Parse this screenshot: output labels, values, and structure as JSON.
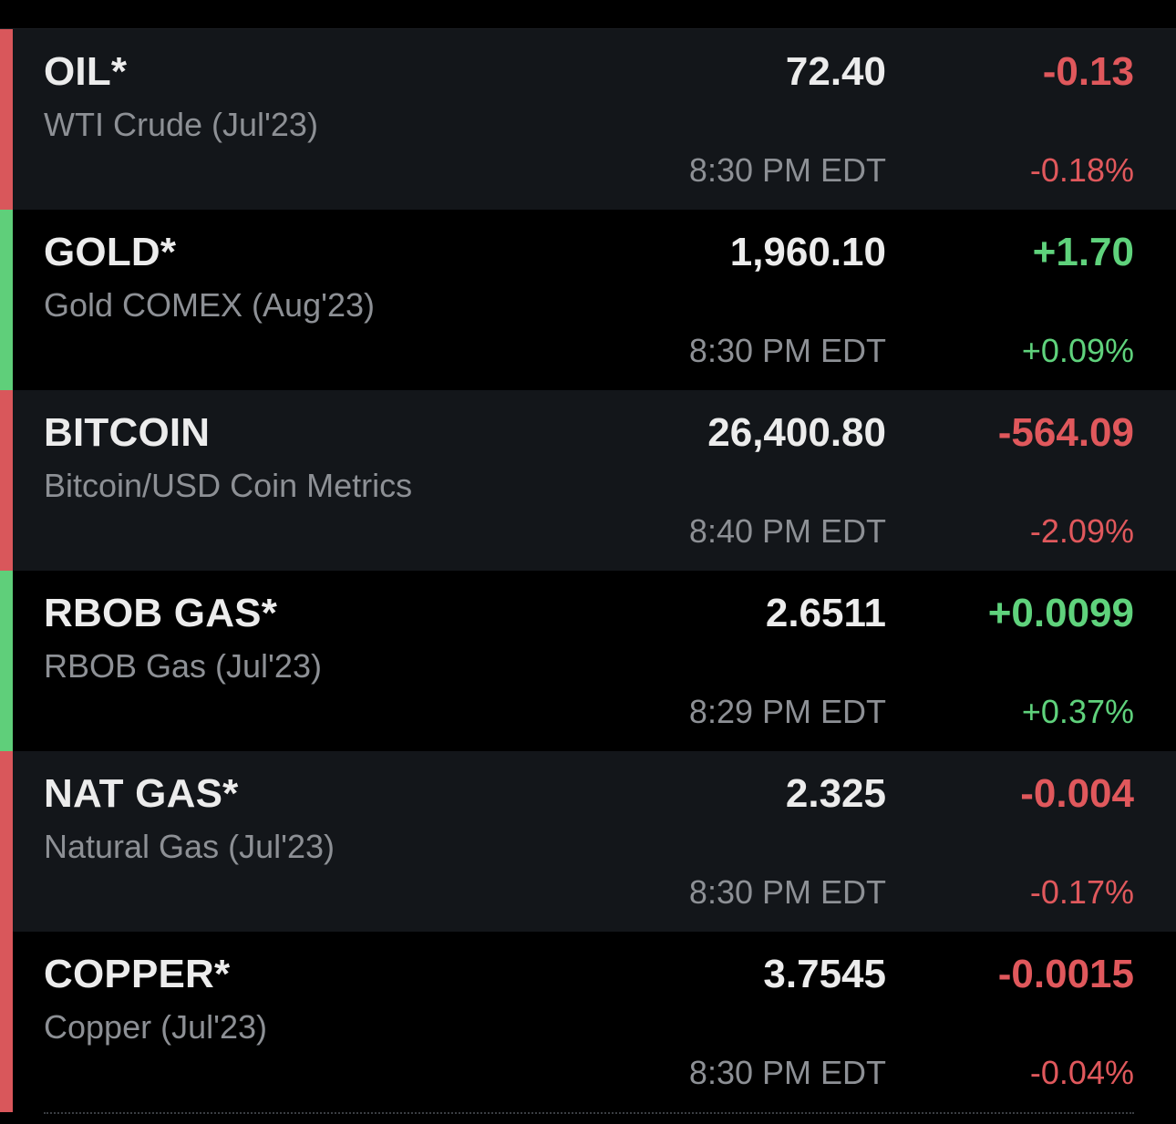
{
  "quotes": [
    {
      "symbol": "OIL*",
      "name": "WTI Crude (Jul'23)",
      "price": "72.40",
      "time": "8:30 PM EDT",
      "change": "-0.13",
      "change_pct": "-0.18%",
      "direction": "down"
    },
    {
      "symbol": "GOLD*",
      "name": "Gold COMEX (Aug'23)",
      "price": "1,960.10",
      "time": "8:30 PM EDT",
      "change": "+1.70",
      "change_pct": "+0.09%",
      "direction": "up"
    },
    {
      "symbol": "BITCOIN",
      "name": "Bitcoin/USD Coin Metrics",
      "price": "26,400.80",
      "time": "8:40 PM EDT",
      "change": "-564.09",
      "change_pct": "-2.09%",
      "direction": "down"
    },
    {
      "symbol": "RBOB GAS*",
      "name": "RBOB Gas (Jul'23)",
      "price": "2.6511",
      "time": "8:29 PM EDT",
      "change": "+0.0099",
      "change_pct": "+0.37%",
      "direction": "up"
    },
    {
      "symbol": "NAT GAS*",
      "name": "Natural Gas (Jul'23)",
      "price": "2.325",
      "time": "8:30 PM EDT",
      "change": "-0.004",
      "change_pct": "-0.17%",
      "direction": "down"
    },
    {
      "symbol": "COPPER*",
      "name": "Copper (Jul'23)",
      "price": "3.7545",
      "time": "8:30 PM EDT",
      "change": "-0.0015",
      "change_pct": "-0.04%",
      "direction": "down"
    }
  ],
  "colors": {
    "positive": "#5fd27c",
    "negative": "#e0585c",
    "primary_text": "#ececec",
    "secondary_text": "#8d9095",
    "row_alt_background": "#13161a",
    "background": "#000000"
  }
}
